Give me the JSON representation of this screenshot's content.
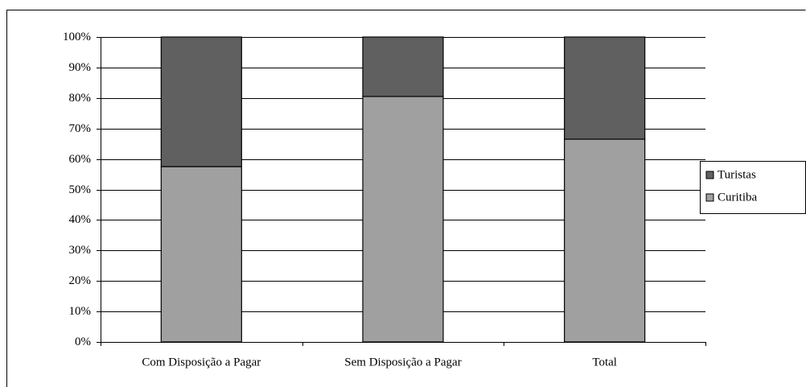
{
  "chart_data": {
    "type": "bar",
    "stacked": true,
    "categories": [
      "Com Disposição a Pagar",
      "Sem Disposição a Pagar",
      "Total"
    ],
    "series": [
      {
        "name": "Curitiba",
        "color": "#a0a0a0",
        "values": [
          57.5,
          80.5,
          66.5
        ]
      },
      {
        "name": "Turistas",
        "color": "#606060",
        "values": [
          42.5,
          19.5,
          33.5
        ]
      }
    ],
    "ylim": [
      0,
      100
    ],
    "yticks": [
      {
        "value": 0,
        "label": "0%"
      },
      {
        "value": 10,
        "label": "10%"
      },
      {
        "value": 20,
        "label": "20%"
      },
      {
        "value": 30,
        "label": "30%"
      },
      {
        "value": 40,
        "label": "40%"
      },
      {
        "value": 50,
        "label": "50%"
      },
      {
        "value": 60,
        "label": "60%"
      },
      {
        "value": 70,
        "label": "70%"
      },
      {
        "value": 80,
        "label": "80%"
      },
      {
        "value": 90,
        "label": "90%"
      },
      {
        "value": 100,
        "label": "100%"
      }
    ],
    "grid": true,
    "legend": "right"
  }
}
